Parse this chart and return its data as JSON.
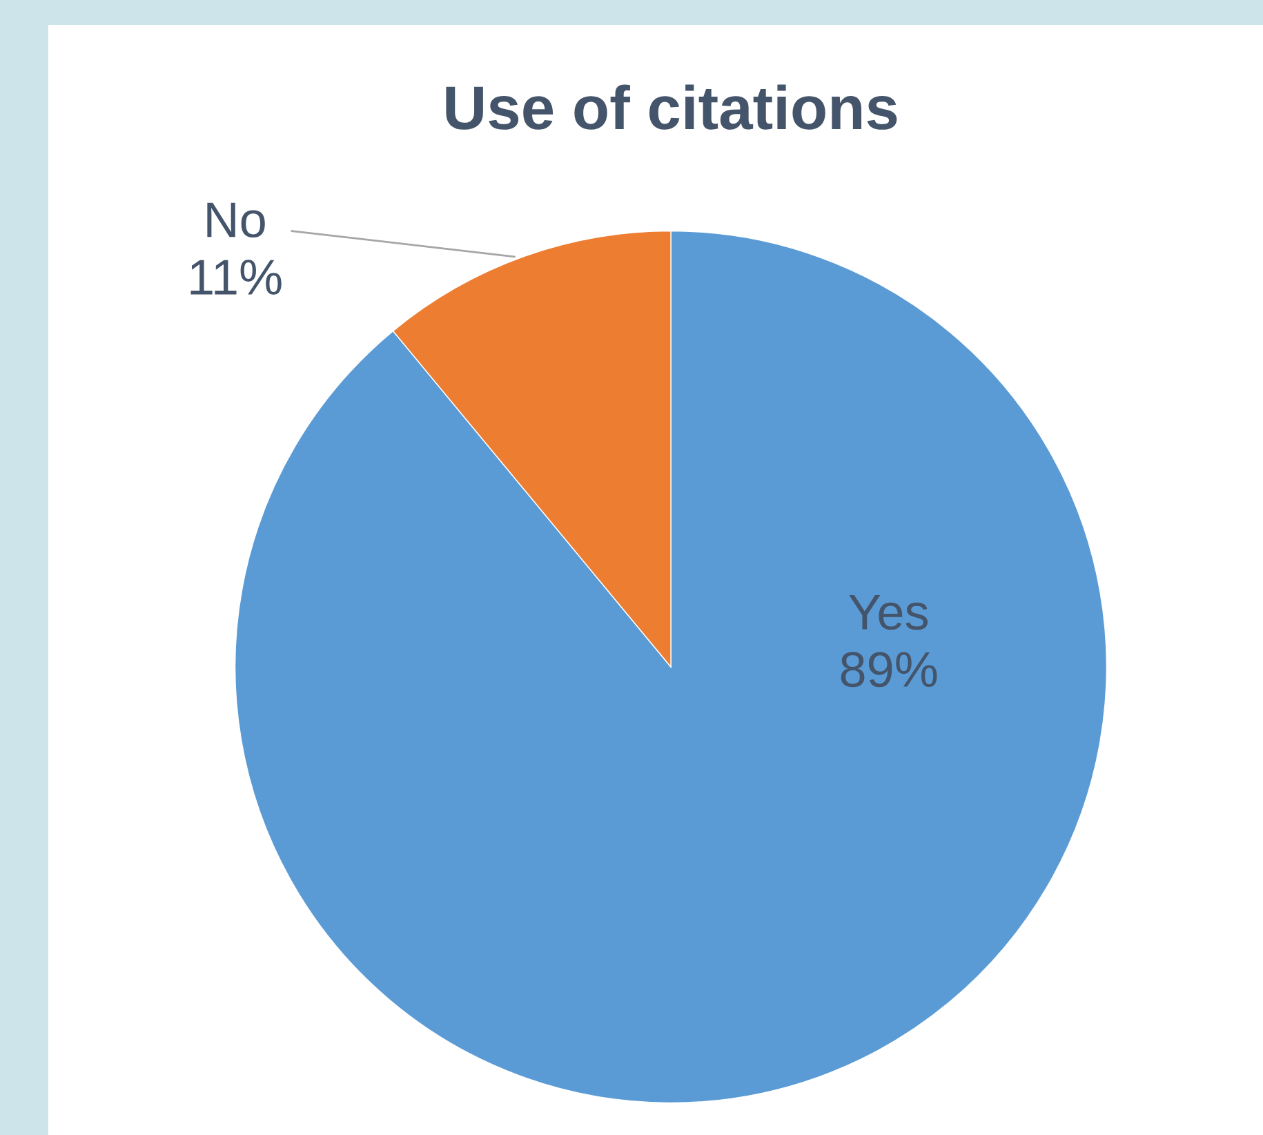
{
  "chart_data": {
    "type": "pie",
    "title": "Use of citations",
    "categories": [
      "Yes",
      "No"
    ],
    "values": [
      89,
      11
    ],
    "value_labels": [
      "89%",
      "11%"
    ],
    "colors": [
      "#5b9bd5",
      "#ed7d31"
    ],
    "legend": false
  }
}
